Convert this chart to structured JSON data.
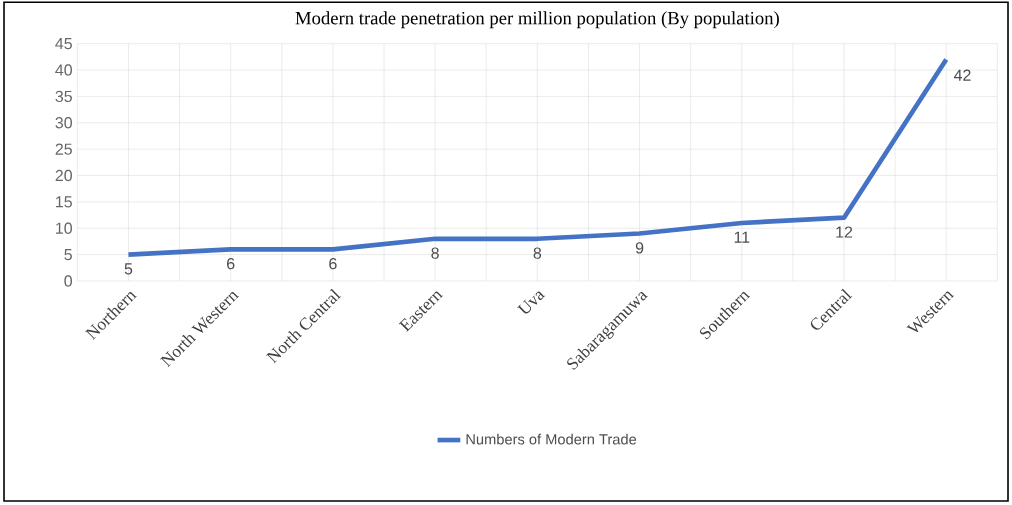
{
  "chart_data": {
    "type": "line",
    "title": "Modern trade penetration per million population (By population)",
    "categories": [
      "Northern",
      "North Western",
      "North Central",
      "Eastern",
      "Uva",
      "Sabaragamuwa",
      "Southern",
      "Central",
      "Western"
    ],
    "series": [
      {
        "name": "Numbers of Modern Trade",
        "color": "#4472c4",
        "values": [
          5,
          6,
          6,
          8,
          8,
          9,
          11,
          12,
          42
        ]
      }
    ],
    "data_labels": true,
    "ylim": [
      0,
      45
    ],
    "yticks": [
      0,
      5,
      10,
      15,
      20,
      25,
      30,
      35,
      40,
      45
    ],
    "grid": true,
    "legend": "bottom",
    "marker": "none",
    "line_style": "solid"
  }
}
